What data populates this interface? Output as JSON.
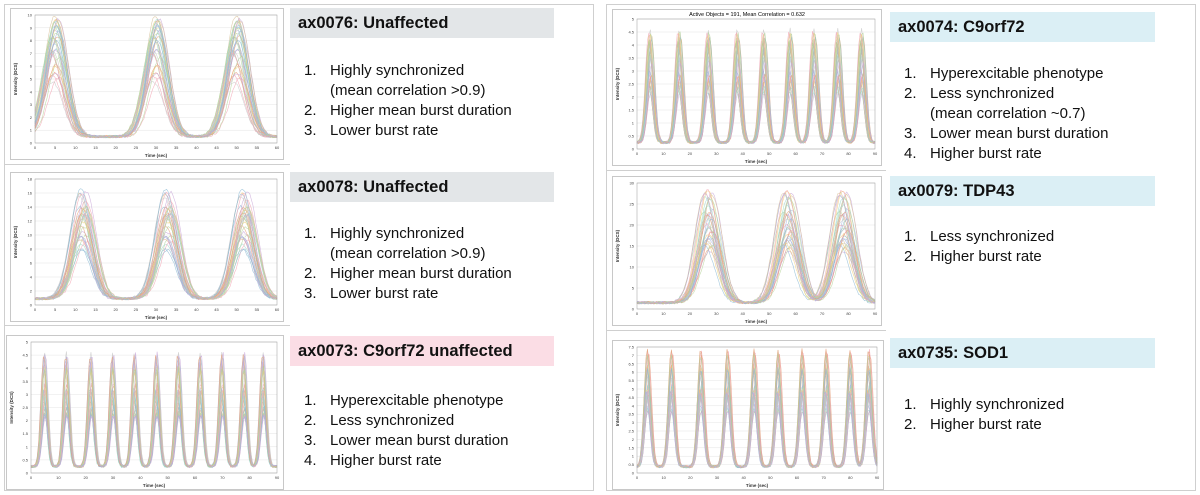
{
  "panels": [
    {
      "header": "ax0076: Unaffected",
      "header_color": "#e3e6e8",
      "items": [
        {
          "num": "1.",
          "text": "Highly synchronized"
        },
        {
          "num": "",
          "text": "(mean correlation >0.9)"
        },
        {
          "num": "2.",
          "text": "Higher mean burst duration"
        },
        {
          "num": "3.",
          "text": "Lower burst rate"
        }
      ],
      "chart": {
        "title": "",
        "xlabel": "Time (sec)",
        "ylabel": "Intensity (DCS)",
        "yticks": [
          "10",
          "9",
          "8",
          "7",
          "6",
          "5",
          "4",
          "3",
          "2",
          "1",
          "0"
        ],
        "xticks": [
          "0",
          "5",
          "10",
          "15",
          "20",
          "25",
          "30",
          "35",
          "40",
          "45",
          "50",
          "55",
          "60"
        ],
        "peaks_x": [
          5,
          30,
          50
        ],
        "peak_height": 9.2,
        "ymax": 10,
        "xmax": 60
      }
    },
    {
      "header": "ax0078: Unaffected",
      "header_color": "#e3e6e8",
      "items": [
        {
          "num": "1.",
          "text": "Highly synchronized"
        },
        {
          "num": "",
          "text": "(mean correlation >0.9)"
        },
        {
          "num": "2.",
          "text": "Higher mean burst duration"
        },
        {
          "num": "3.",
          "text": "Lower burst rate"
        }
      ],
      "chart": {
        "title": "",
        "xlabel": "Time (sec)",
        "ylabel": "Intensity (DCS)",
        "yticks": [
          "18",
          "16",
          "14",
          "12",
          "10",
          "8",
          "6",
          "4",
          "2",
          "0"
        ],
        "xticks": [
          "0",
          "5",
          "10",
          "15",
          "20",
          "25",
          "30",
          "35",
          "40",
          "45",
          "50",
          "55",
          "60"
        ],
        "peaks_x": [
          12,
          33,
          52
        ],
        "peak_height": 15,
        "ymax": 18,
        "xmax": 60
      }
    },
    {
      "header": "ax0073: C9orf72 unaffected",
      "header_color": "#fbdde5",
      "items": [
        {
          "num": "1.",
          "text": "Hyperexcitable phenotype"
        },
        {
          "num": "2.",
          "text": "Less synchronized"
        },
        {
          "num": "3.",
          "text": "Lower mean burst duration"
        },
        {
          "num": "4.",
          "text": "Higher burst rate"
        }
      ],
      "chart": {
        "title": "",
        "xlabel": "Time (sec)",
        "ylabel": "Intensity (DCS)",
        "yticks": [
          "5",
          "4.5",
          "4",
          "3.5",
          "3",
          "2.5",
          "2",
          "1.5",
          "1",
          "0.5",
          "0"
        ],
        "xticks": [
          "0",
          "10",
          "20",
          "30",
          "40",
          "50",
          "60",
          "70",
          "80",
          "90"
        ],
        "peaks_x": [
          5,
          13,
          22,
          30,
          38,
          46,
          54,
          62,
          70,
          78,
          85
        ],
        "peak_height": 4.2,
        "ymax": 5,
        "xmax": 90
      }
    },
    {
      "header": "ax0074: C9orf72",
      "header_color": "#dbeff5",
      "items": [
        {
          "num": "1.",
          "text": "Hyperexcitable phenotype"
        },
        {
          "num": "2.",
          "text": "Less synchronized"
        },
        {
          "num": "",
          "text": " (mean correlation ~0.7)"
        },
        {
          "num": "3.",
          "text": "Lower mean burst duration"
        },
        {
          "num": "4.",
          "text": "Higher burst rate"
        }
      ],
      "chart": {
        "title": "Active Objects = 191, Mean Correlation = 0.632",
        "xlabel": "Time (sec)",
        "ylabel": "Intensity (DCS)",
        "yticks": [
          "5",
          "4.5",
          "4",
          "3.5",
          "3",
          "2.5",
          "2",
          "1.5",
          "1",
          "0.5",
          "0"
        ],
        "xticks": [
          "0",
          "10",
          "20",
          "30",
          "40",
          "50",
          "60",
          "70",
          "80",
          "90"
        ],
        "peaks_x": [
          5,
          16,
          27,
          38,
          48,
          58,
          67,
          76,
          85
        ],
        "peak_height": 4.2,
        "ymax": 5,
        "xmax": 90
      }
    },
    {
      "header": "ax0079: TDP43",
      "header_color": "#dbeff5",
      "items": [
        {
          "num": "1.",
          "text": "Less synchronized"
        },
        {
          "num": "2.",
          "text": "Higher burst rate"
        }
      ],
      "chart": {
        "title": "",
        "xlabel": "Time (sec)",
        "ylabel": "Intensity (DCS)",
        "yticks": [
          "30",
          "25",
          "20",
          "15",
          "10",
          "5",
          "0"
        ],
        "xticks": [
          "0",
          "10",
          "20",
          "30",
          "40",
          "50",
          "60",
          "70",
          "80",
          "90"
        ],
        "peaks_x": [
          27,
          57,
          78
        ],
        "peak_height": 26,
        "ymax": 30,
        "xmax": 90
      }
    },
    {
      "header": "ax0735: SOD1",
      "header_color": "#dbeff5",
      "items": [
        {
          "num": "1.",
          "text": "Highly synchronized"
        },
        {
          "num": "2.",
          "text": "Higher burst rate"
        }
      ],
      "chart": {
        "title": "",
        "xlabel": "Time (sec)",
        "ylabel": "Intensity (DCS)",
        "yticks": [
          "7.5",
          "7",
          "6.5",
          "6",
          "5.5",
          "5",
          "4.5",
          "4",
          "3.5",
          "3",
          "2.5",
          "2",
          "1.5",
          "1",
          "0.5",
          "0"
        ],
        "xticks": [
          "0",
          "10",
          "20",
          "30",
          "40",
          "50",
          "60",
          "70",
          "80",
          "90"
        ],
        "peaks_x": [
          4,
          13,
          24,
          34,
          44,
          53,
          62,
          71,
          80,
          87
        ],
        "peak_height": 6.8,
        "ymax": 7.5,
        "xmax": 90
      }
    }
  ]
}
